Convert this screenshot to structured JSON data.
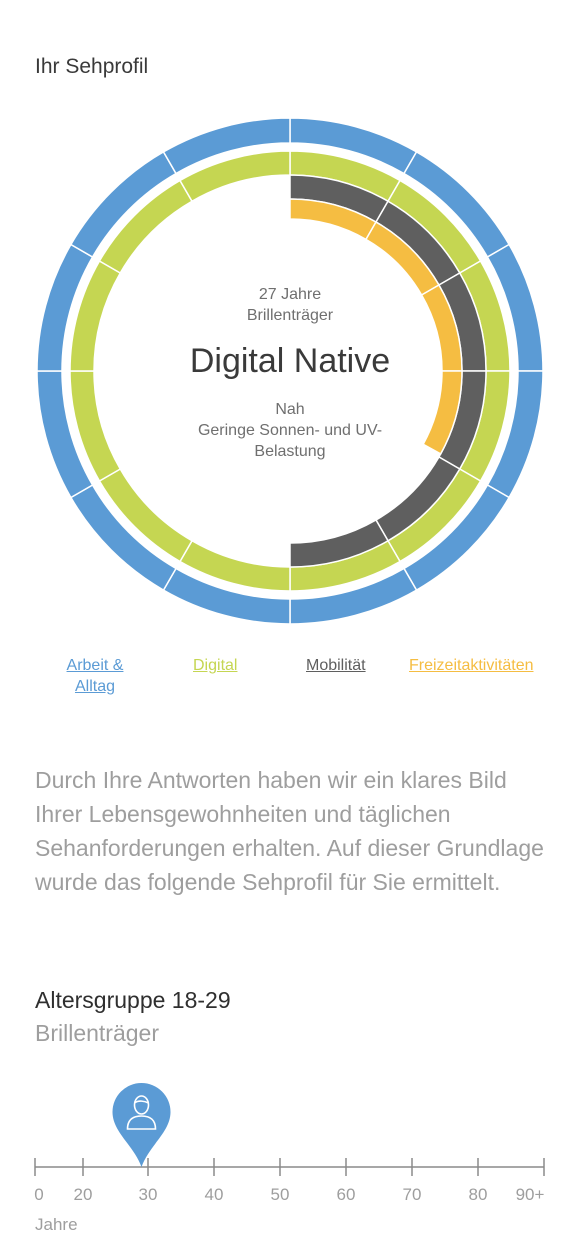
{
  "title": "Ihr Sehprofil",
  "profile": {
    "age": "27 Jahre",
    "wear": "Brillenträger",
    "name": "Digital Native",
    "distance": "Nah",
    "exposure": "Geringe Sonnen- und UV-Belastung"
  },
  "rings": [
    {
      "name": "Arbeit & Alltag",
      "color": "#5b9bd5",
      "fraction": 1.0
    },
    {
      "name": "Digital",
      "color": "#c5d652",
      "fraction": 1.0
    },
    {
      "name": "Mobilität",
      "color": "#5f5f5f",
      "fraction": 0.5
    },
    {
      "name": "Freizeitaktivitäten",
      "color": "#f5bd42",
      "fraction": 0.33
    }
  ],
  "legend": [
    {
      "label_line1": "Arbeit &",
      "label_line2": "Alltag",
      "color": "#5b9bd5"
    },
    {
      "label_line1": "Digital",
      "label_line2": "",
      "color": "#c5d652"
    },
    {
      "label_line1": "Mobilität",
      "label_line2": "",
      "color": "#5f5f5f"
    },
    {
      "label_line1": "Freizeitaktivitäten",
      "label_line2": "",
      "color": "#f5bd42"
    }
  ],
  "intro": "Durch Ihre Antworten haben wir ein klares Bild Ihrer Lebensgewohnheiten und täglichen Sehanforderungen erhalten. Auf dieser Grundlage wurde das folgende Sehprofil für Sie ermittelt.",
  "age_group": {
    "title": "Altersgruppe 18-29",
    "subtitle": "Brillenträger"
  },
  "age_scale": {
    "ticks": [
      "0",
      "20",
      "30",
      "40",
      "50",
      "60",
      "70",
      "80",
      "90+"
    ],
    "unit": "Jahre",
    "marker_value": 29,
    "marker_color": "#5b9bd5",
    "marker_icon": "person-icon"
  }
}
